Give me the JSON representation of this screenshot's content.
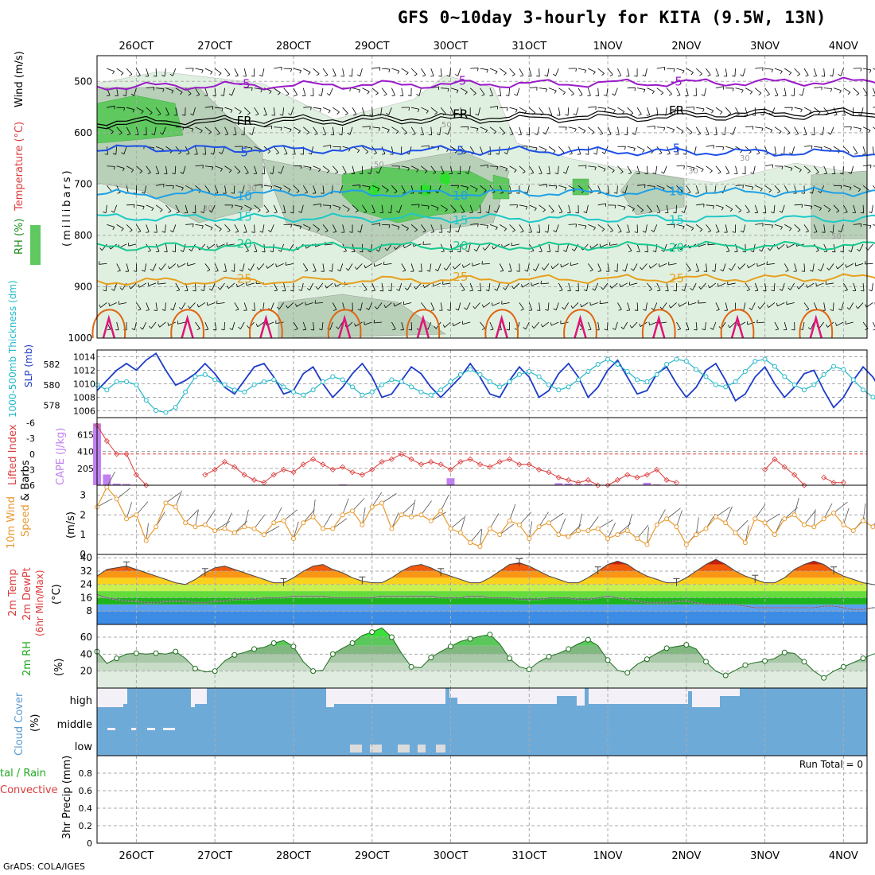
{
  "header": {
    "title": "GFS 0~10day 3-hourly for KITA (9.5W, 13N)",
    "credit": "GrADS: COLA/IGES"
  },
  "time_axis": {
    "labels": [
      "26OCT",
      "27OCT",
      "28OCT",
      "29OCT",
      "30OCT",
      "31OCT",
      "1NOV",
      "2NOV",
      "3NOV",
      "4NOV"
    ],
    "start_day": 25.5,
    "end_day": 35.3
  },
  "colors": {
    "rh_light": "#e0f0e0",
    "rh_mid": "#b8d0b8",
    "rh_dark": "#5fc85f",
    "rh_bright": "#2ee02e",
    "temp_purple": "#9a1ac8",
    "temp_black": "#000000",
    "temp_blue": "#1e50e6",
    "temp_sky": "#1ea0e6",
    "temp_cyan": "#1ec8c8",
    "temp_green": "#18c890",
    "temp_orange": "#e6a020",
    "temp_dark_orange": "#e06410",
    "temp_magenta": "#e0147a",
    "thickness": "#22b8c8",
    "slp": "#1e3cc8",
    "lifted": "#dc3c3c",
    "cape": "#c080f0",
    "wind10": "#e89a30",
    "cloud": "#6eaad8",
    "cloud_bg": "#f4f0f8"
  },
  "chart_data": [
    {
      "id": "upper_air",
      "type": "heatmap",
      "ylabel": "(millibars)",
      "side_labels": [
        "RH (%)",
        "Temperature (°C)",
        "Wind (m/s)"
      ],
      "yticks": [
        500,
        600,
        700,
        800,
        900,
        1000
      ],
      "ylim": [
        1000,
        450
      ],
      "rh_shading": [
        50,
        70,
        90
      ],
      "rh_contour_labels": [
        "30",
        "50",
        "50",
        "30",
        "50",
        "30",
        "30"
      ],
      "temperature_contours": [
        {
          "label": "-5",
          "pressure_start": 510,
          "pressure_end": 500
        },
        {
          "label": "FR",
          "pressure_start": 578,
          "pressure_end": 558
        },
        {
          "label": "5",
          "pressure_start": 630,
          "pressure_end": 640
        },
        {
          "label": "10",
          "pressure_start": 720,
          "pressure_end": 715
        },
        {
          "label": "15",
          "pressure_start": 765,
          "pressure_end": 768
        },
        {
          "label": "20",
          "pressure_start": 822,
          "pressure_end": 820
        },
        {
          "label": "25",
          "pressure_start": 890,
          "pressure_end": 882
        }
      ]
    },
    {
      "id": "thickness_slp",
      "type": "line",
      "ylabel_left": "1000-500mb Thickness (dm)",
      "ylabel_right": "SLP (mb)",
      "left_ticks": [
        "578",
        "580",
        "582"
      ],
      "right_ticks": [
        "1006",
        "1008",
        "1010",
        "1012",
        "1014"
      ],
      "series": [
        {
          "name": "SLP (mb)",
          "values": [
            1009.0,
            1010.5,
            1012.0,
            1013.0,
            1012.0,
            1013.5,
            1014.5,
            1012.0,
            1009.8,
            1010.5,
            1011.5,
            1013.0,
            1011.5,
            1009.5,
            1008.5,
            1010.5,
            1012.5,
            1013.0,
            1011.0,
            1008.5,
            1009.0,
            1011.5,
            1012.5,
            1010.0,
            1008.0,
            1009.5,
            1011.5,
            1013.0,
            1011.0,
            1008.0,
            1008.5,
            1010.5,
            1012.5,
            1011.5,
            1009.5,
            1008.0,
            1009.5,
            1011.0,
            1013.0,
            1011.0,
            1008.5,
            1008.0,
            1010.5,
            1012.5,
            1011.0,
            1008.0,
            1009.0,
            1011.5,
            1013.0,
            1011.0,
            1008.0,
            1009.5,
            1012.0,
            1013.5,
            1011.0,
            1008.5,
            1009.0,
            1011.5,
            1012.5,
            1010.0,
            1008.0,
            1009.5,
            1012.0,
            1013.0,
            1010.5,
            1007.5,
            1008.5,
            1011.0,
            1012.5,
            1010.0,
            1008.0,
            1009.5,
            1011.5,
            1012.0,
            1009.0,
            1006.5,
            1008.0,
            1010.5,
            1012.5,
            1011.0,
            1008.5,
            1009.0
          ]
        },
        {
          "name": "1000-500mb Thickness (dm)",
          "values": [
            580.0,
            579.5,
            580.3,
            580.3,
            580.0,
            578.5,
            577.5,
            577.3,
            577.8,
            579.3,
            580.8,
            581.0,
            580.5,
            580.0,
            579.5,
            579.3,
            580.0,
            580.3,
            580.5,
            579.8,
            579.3,
            579.0,
            579.5,
            580.3,
            580.8,
            580.5,
            579.8,
            579.0,
            579.3,
            580.0,
            580.5,
            580.3,
            579.8,
            579.3,
            579.0,
            579.5,
            580.3,
            581.0,
            581.5,
            581.0,
            580.3,
            579.8,
            580.3,
            581.0,
            581.3,
            580.8,
            580.0,
            579.5,
            579.8,
            580.5,
            581.3,
            582.0,
            582.5,
            582.0,
            581.3,
            580.5,
            580.3,
            581.0,
            582.0,
            582.5,
            582.3,
            581.5,
            580.8,
            580.0,
            579.8,
            580.3,
            581.3,
            582.3,
            582.5,
            581.8,
            580.8,
            580.0,
            579.5,
            580.0,
            581.0,
            581.8,
            581.5,
            580.5,
            579.5,
            578.8,
            578.0,
            577.8
          ]
        }
      ]
    },
    {
      "id": "cape_li",
      "type": "bar",
      "ylabel_left": "Lifted Index",
      "ylabel_right": "CAPE (J/kg)",
      "left_ticks": [
        "-6",
        "-3",
        "0",
        "3",
        "6"
      ],
      "right_ticks": [
        "205",
        "410",
        "615"
      ],
      "series": [
        {
          "name": "CAPE (J/kg)",
          "values": [
            750,
            130,
            20,
            15,
            0,
            0,
            0,
            0,
            0,
            0,
            0,
            0,
            0,
            0,
            0,
            0,
            0,
            0,
            0,
            0,
            0,
            0,
            0,
            0,
            0,
            10,
            0,
            0,
            0,
            0,
            0,
            0,
            0,
            0,
            0,
            0,
            85,
            0,
            0,
            0,
            0,
            0,
            0,
            0,
            0,
            0,
            0,
            25,
            20,
            10,
            15,
            0,
            0,
            0,
            0,
            0,
            30,
            10,
            0,
            0,
            0,
            0,
            0,
            0,
            0,
            0,
            0,
            0,
            0,
            0,
            0,
            0,
            0,
            0,
            0,
            0,
            0,
            0,
            0,
            0,
            0,
            0
          ]
        },
        {
          "name": "Lifted Index",
          "values": [
            -5.5,
            -2.5,
            0,
            0,
            4,
            6,
            null,
            null,
            null,
            null,
            null,
            4,
            3,
            1.5,
            2.5,
            4,
            5,
            5.5,
            4,
            3,
            3.5,
            2,
            1,
            2,
            3,
            2.5,
            3.5,
            4,
            3,
            1.5,
            1,
            0,
            1,
            2,
            1.5,
            2,
            3,
            1.5,
            1,
            2,
            2.5,
            1.5,
            1,
            2,
            2,
            3,
            3.5,
            4.5,
            5,
            5.5,
            5,
            6,
            6,
            5,
            4,
            4.5,
            4,
            3,
            5,
            5.5,
            null,
            null,
            null,
            null,
            null,
            null,
            null,
            null,
            3,
            1,
            2.5,
            4,
            6,
            null,
            4.5,
            5.5,
            5.5,
            null,
            null,
            null,
            null,
            null
          ]
        }
      ]
    },
    {
      "id": "wind10m",
      "type": "line",
      "ylabel": "10m Wind Speed & Barbs (m/s)",
      "yticks": [
        "0",
        "1",
        "2",
        "3"
      ],
      "ylim": [
        0,
        3.5
      ],
      "series": [
        {
          "name": "10m Wind Speed",
          "values": [
            2.4,
            3.4,
            2.8,
            1.8,
            2.0,
            0.7,
            1.4,
            2.6,
            2.4,
            1.6,
            1.4,
            1.5,
            1.2,
            1.3,
            1.1,
            1.4,
            1.3,
            1.0,
            1.6,
            1.7,
            0.8,
            1.6,
            1.9,
            1.3,
            1.3,
            2.0,
            2.2,
            1.5,
            2.4,
            2.6,
            1.3,
            2.0,
            1.9,
            2.0,
            1.7,
            2.2,
            1.3,
            1.1,
            0.6,
            0.4,
            1.3,
            1.0,
            1.7,
            1.5,
            0.8,
            1.4,
            1.6,
            1.0,
            0.9,
            1.2,
            1.2,
            1.3,
            0.8,
            1.0,
            1.2,
            0.8,
            0.5,
            1.5,
            1.8,
            1.4,
            0.5,
            1.0,
            1.3,
            1.9,
            1.6,
            1.1,
            0.6,
            1.8,
            1.6,
            1.0,
            1.8,
            2.0,
            1.5,
            1.4,
            1.8,
            2.1,
            1.5,
            1.2,
            1.7,
            1.4,
            1.2,
            1.1
          ]
        }
      ]
    },
    {
      "id": "temp2m",
      "type": "area",
      "ylabel": "2m Temp 2m DewPt (6hr Min/Max) (°C)",
      "yticks": [
        "8",
        "16",
        "24",
        "32",
        "40"
      ],
      "ylim": [
        0,
        42
      ],
      "series": [
        {
          "name": "2m Temp",
          "values": [
            29,
            33,
            34,
            35,
            33,
            31,
            29,
            27,
            25,
            24,
            27,
            31,
            34,
            35,
            33,
            31,
            29,
            27,
            25,
            25,
            28,
            32,
            35,
            36,
            33,
            31,
            28,
            26,
            25,
            25,
            28,
            32,
            35,
            36,
            34,
            31,
            29,
            27,
            25,
            25,
            28,
            32,
            36,
            37,
            35,
            32,
            29,
            27,
            25,
            25,
            28,
            32,
            36,
            38,
            36,
            32,
            29,
            27,
            25,
            25,
            28,
            32,
            36,
            39,
            36,
            32,
            29,
            27,
            25,
            25,
            28,
            33,
            36,
            38,
            36,
            32,
            29,
            27,
            25,
            24,
            23,
            22
          ]
        },
        {
          "name": "2m DewPt",
          "values": [
            18,
            16,
            15,
            14,
            14,
            13,
            13,
            14,
            14,
            14,
            13,
            13,
            14,
            14,
            15,
            15,
            15,
            16,
            16,
            16,
            17,
            17,
            17,
            17,
            16,
            16,
            16,
            16,
            16,
            17,
            17,
            17,
            17,
            17,
            17,
            16,
            16,
            16,
            17,
            17,
            16,
            16,
            16,
            15,
            15,
            15,
            16,
            16,
            16,
            15,
            15,
            16,
            17,
            16,
            15,
            14,
            13,
            13,
            13,
            14,
            14,
            13,
            12,
            12,
            12,
            12,
            11,
            10,
            10,
            10,
            10,
            10,
            10,
            10,
            11,
            11,
            10,
            9,
            9,
            10,
            10,
            10
          ]
        }
      ]
    },
    {
      "id": "rh2m",
      "type": "area",
      "ylabel": "2m RH (%)",
      "yticks": [
        "20",
        "40",
        "60"
      ],
      "ylim": [
        0,
        75
      ],
      "series": [
        {
          "name": "2m RH",
          "values": [
            43,
            29,
            35,
            40,
            41,
            40,
            41,
            40,
            43,
            35,
            23,
            19,
            20,
            32,
            39,
            42,
            46,
            48,
            53,
            56,
            49,
            31,
            20,
            21,
            40,
            47,
            53,
            62,
            66,
            71,
            60,
            41,
            25,
            24,
            36,
            43,
            49,
            55,
            58,
            61,
            63,
            52,
            35,
            25,
            22,
            31,
            37,
            41,
            46,
            52,
            57,
            50,
            33,
            21,
            18,
            28,
            34,
            41,
            47,
            49,
            51,
            46,
            31,
            20,
            15,
            21,
            27,
            30,
            32,
            35,
            42,
            41,
            31,
            20,
            12,
            20,
            25,
            30,
            35,
            40,
            42,
            44
          ]
        }
      ]
    },
    {
      "id": "cloud",
      "type": "area",
      "ylabel": "Cloud Cover (%)",
      "levels": [
        "high",
        "middle",
        "low"
      ]
    },
    {
      "id": "precip",
      "type": "bar",
      "ylabel": "3hr Precip (mm)",
      "legend_left": [
        "tal / Rain",
        "Convective"
      ],
      "yticks": [
        "0",
        "0.2",
        "0.4",
        "0.6",
        "0.8"
      ],
      "ylim": [
        0,
        1
      ],
      "annotation": "Run Total = 0"
    }
  ]
}
